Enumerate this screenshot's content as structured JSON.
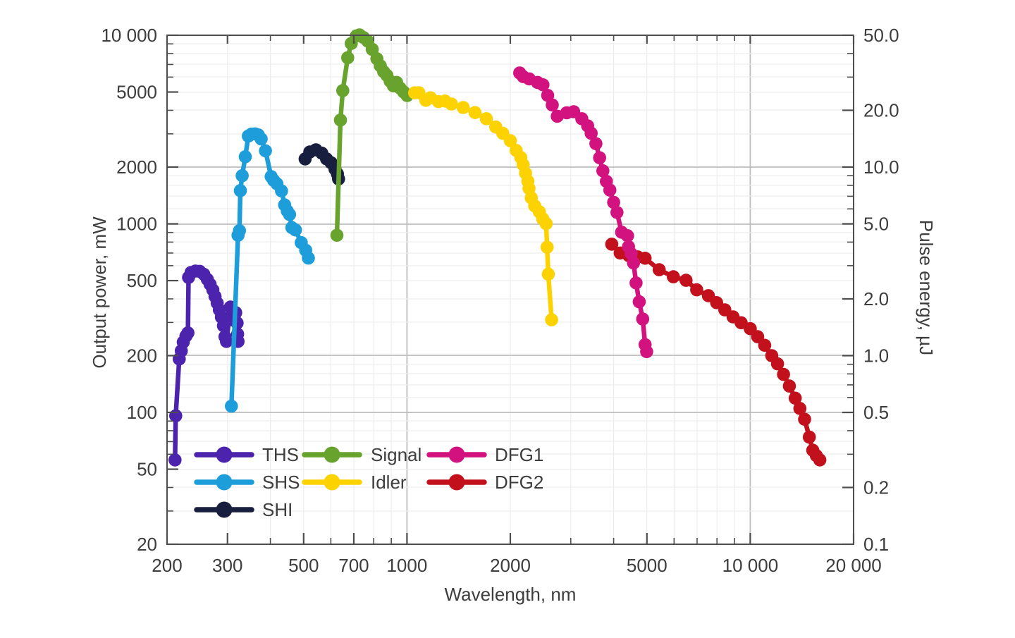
{
  "chart_data": {
    "type": "line",
    "title": "",
    "xlabel": "Wavelength, nm",
    "ylabel_left": "Output power, mW",
    "ylabel_right": "Pulse energy, µJ",
    "x_scale": "log",
    "y_scale": "log",
    "xlim": [
      200,
      20000
    ],
    "ylim_left": [
      20,
      10000
    ],
    "ylim_right": [
      0.1,
      50
    ],
    "grid": true,
    "x_ticks": [
      {
        "v": 200,
        "label": "200"
      },
      {
        "v": 300,
        "label": "300"
      },
      {
        "v": 400
      },
      {
        "v": 500,
        "label": "500"
      },
      {
        "v": 600
      },
      {
        "v": 700,
        "label": "700"
      },
      {
        "v": 800
      },
      {
        "v": 900
      },
      {
        "v": 1000,
        "label": "1000"
      },
      {
        "v": 2000,
        "label": "2000"
      },
      {
        "v": 3000
      },
      {
        "v": 4000
      },
      {
        "v": 5000,
        "label": "5000"
      },
      {
        "v": 6000
      },
      {
        "v": 7000
      },
      {
        "v": 8000
      },
      {
        "v": 9000
      },
      {
        "v": 10000,
        "label": "10 000"
      },
      {
        "v": 20000,
        "label": "20 000"
      }
    ],
    "y_left_ticks": [
      {
        "v": 10000,
        "label": "10 000"
      },
      {
        "v": 9000
      },
      {
        "v": 8000
      },
      {
        "v": 7000
      },
      {
        "v": 6000
      },
      {
        "v": 5000,
        "label": "5000"
      },
      {
        "v": 4000
      },
      {
        "v": 3000
      },
      {
        "v": 2000,
        "label": "2000"
      },
      {
        "v": 1000,
        "label": "1000"
      },
      {
        "v": 900
      },
      {
        "v": 800
      },
      {
        "v": 700
      },
      {
        "v": 600
      },
      {
        "v": 500,
        "label": "500"
      },
      {
        "v": 400
      },
      {
        "v": 300
      },
      {
        "v": 200,
        "label": "200"
      },
      {
        "v": 100,
        "label": "100"
      },
      {
        "v": 90
      },
      {
        "v": 80
      },
      {
        "v": 70
      },
      {
        "v": 60
      },
      {
        "v": 50,
        "label": "50"
      },
      {
        "v": 40
      },
      {
        "v": 30
      },
      {
        "v": 20,
        "label": "20"
      }
    ],
    "y_right_ticks": [
      {
        "v": 50,
        "label": "50.0"
      },
      {
        "v": 40
      },
      {
        "v": 30
      },
      {
        "v": 20,
        "label": "20.0"
      },
      {
        "v": 10,
        "label": "10.0"
      },
      {
        "v": 9
      },
      {
        "v": 8
      },
      {
        "v": 7
      },
      {
        "v": 6
      },
      {
        "v": 5,
        "label": "5.0"
      },
      {
        "v": 4
      },
      {
        "v": 3
      },
      {
        "v": 2,
        "label": "2.0"
      },
      {
        "v": 1,
        "label": "1.0"
      },
      {
        "v": 0.9
      },
      {
        "v": 0.8
      },
      {
        "v": 0.7
      },
      {
        "v": 0.6
      },
      {
        "v": 0.5,
        "label": "0.5"
      },
      {
        "v": 0.4
      },
      {
        "v": 0.3
      },
      {
        "v": 0.2,
        "label": "0.2"
      },
      {
        "v": 0.1,
        "label": "0.1"
      }
    ],
    "grid_emphasis_x": [
      1000,
      10000
    ],
    "grid_emphasis_y": [
      2000,
      1000,
      200,
      100
    ],
    "draw_order": [
      "THS",
      "SHS",
      "SHI",
      "Signal",
      "Idler",
      "DFG2",
      "DFG1"
    ],
    "legend": {
      "columns": [
        [
          "THS",
          "SHS",
          "SHI"
        ],
        [
          "Signal",
          "Idler"
        ],
        [
          "DFG1",
          "DFG2"
        ]
      ]
    },
    "series": [
      {
        "name": "THS",
        "color": "#4c23ad",
        "points": [
          [
            211,
            56
          ],
          [
            212,
            96
          ],
          [
            217,
            192
          ],
          [
            220,
            212
          ],
          [
            223,
            236
          ],
          [
            227,
            254
          ],
          [
            230,
            264
          ],
          [
            231,
            520
          ],
          [
            235,
            552
          ],
          [
            242,
            562
          ],
          [
            249,
            560
          ],
          [
            256,
            540
          ],
          [
            262,
            508
          ],
          [
            267,
            478
          ],
          [
            272,
            446
          ],
          [
            276,
            412
          ],
          [
            280,
            380
          ],
          [
            284,
            350
          ],
          [
            288,
            320
          ],
          [
            292,
            288
          ],
          [
            295,
            252
          ],
          [
            298,
            238
          ],
          [
            303,
            310
          ],
          [
            306,
            362
          ],
          [
            310,
            336
          ],
          [
            314,
            316
          ],
          [
            317,
            338
          ],
          [
            320,
            298
          ],
          [
            321,
            260
          ],
          [
            322,
            238
          ]
        ]
      },
      {
        "name": "SHS",
        "color": "#1d9dd9",
        "points": [
          [
            308,
            108
          ],
          [
            322,
            870
          ],
          [
            325,
            920
          ],
          [
            327,
            1500
          ],
          [
            331,
            1800
          ],
          [
            338,
            2270
          ],
          [
            345,
            2920
          ],
          [
            352,
            2990
          ],
          [
            361,
            3000
          ],
          [
            369,
            2960
          ],
          [
            376,
            2820
          ],
          [
            387,
            2440
          ],
          [
            402,
            1780
          ],
          [
            409,
            1700
          ],
          [
            418,
            1630
          ],
          [
            431,
            1495
          ],
          [
            440,
            1260
          ],
          [
            448,
            1170
          ],
          [
            455,
            1120
          ],
          [
            462,
            955
          ],
          [
            473,
            928
          ],
          [
            492,
            795
          ],
          [
            507,
            724
          ],
          [
            516,
            658
          ]
        ]
      },
      {
        "name": "SHI",
        "color": "#181f3e",
        "points": [
          [
            505,
            2210
          ],
          [
            521,
            2405
          ],
          [
            543,
            2470
          ],
          [
            565,
            2370
          ],
          [
            583,
            2210
          ],
          [
            601,
            2110
          ],
          [
            617,
            1950
          ],
          [
            627,
            1840
          ],
          [
            632,
            1730
          ]
        ]
      },
      {
        "name": "Signal",
        "color": "#68a32d",
        "points": [
          [
            625,
            870
          ],
          [
            640,
            3550
          ],
          [
            650,
            5090
          ],
          [
            672,
            7600
          ],
          [
            688,
            9040
          ],
          [
            712,
            9920
          ],
          [
            727,
            10040
          ],
          [
            747,
            9730
          ],
          [
            769,
            9300
          ],
          [
            792,
            8420
          ],
          [
            817,
            7510
          ],
          [
            836,
            6890
          ],
          [
            855,
            6410
          ],
          [
            874,
            6130
          ],
          [
            893,
            5710
          ],
          [
            913,
            5390
          ],
          [
            933,
            5620
          ],
          [
            955,
            5240
          ],
          [
            978,
            5000
          ],
          [
            1001,
            4790
          ]
        ]
      },
      {
        "name": "Idler",
        "color": "#fdd201",
        "points": [
          [
            1053,
            4950
          ],
          [
            1083,
            4960
          ],
          [
            1135,
            4520
          ],
          [
            1171,
            4660
          ],
          [
            1235,
            4450
          ],
          [
            1290,
            4480
          ],
          [
            1347,
            4320
          ],
          [
            1458,
            4140
          ],
          [
            1578,
            3890
          ],
          [
            1703,
            3610
          ],
          [
            1814,
            3260
          ],
          [
            1901,
            3020
          ],
          [
            2000,
            2760
          ],
          [
            2080,
            2450
          ],
          [
            2146,
            2245
          ],
          [
            2180,
            2057
          ],
          [
            2215,
            1857
          ],
          [
            2250,
            1683
          ],
          [
            2267,
            1542
          ],
          [
            2302,
            1374
          ],
          [
            2356,
            1245
          ],
          [
            2430,
            1158
          ],
          [
            2486,
            1063
          ],
          [
            2543,
            1003
          ],
          [
            2560,
            752
          ],
          [
            2580,
            541
          ],
          [
            2638,
            310
          ]
        ]
      },
      {
        "name": "DFG1",
        "color": "#d2137f",
        "points": [
          [
            2130,
            6310
          ],
          [
            2180,
            6040
          ],
          [
            2270,
            5870
          ],
          [
            2400,
            5620
          ],
          [
            2490,
            5460
          ],
          [
            2570,
            4800
          ],
          [
            2650,
            4270
          ],
          [
            2740,
            3720
          ],
          [
            2920,
            3880
          ],
          [
            3060,
            3930
          ],
          [
            3230,
            3610
          ],
          [
            3360,
            3310
          ],
          [
            3440,
            3020
          ],
          [
            3550,
            2660
          ],
          [
            3640,
            2240
          ],
          [
            3720,
            1910
          ],
          [
            3810,
            1680
          ],
          [
            3900,
            1510
          ],
          [
            4000,
            1300
          ],
          [
            4090,
            1150
          ],
          [
            4220,
            903
          ],
          [
            4390,
            865
          ],
          [
            4420,
            757
          ],
          [
            4500,
            694
          ],
          [
            4570,
            620
          ],
          [
            4650,
            486
          ],
          [
            4750,
            386
          ],
          [
            4860,
            313
          ],
          [
            4940,
            229
          ],
          [
            4990,
            210
          ]
        ]
      },
      {
        "name": "DFG2",
        "color": "#c2101c",
        "points": [
          [
            3950,
            780
          ],
          [
            4180,
            700
          ],
          [
            4430,
            678
          ],
          [
            4700,
            668
          ],
          [
            4940,
            657
          ],
          [
            5430,
            571
          ],
          [
            5970,
            524
          ],
          [
            6500,
            502
          ],
          [
            6980,
            447
          ],
          [
            7550,
            416
          ],
          [
            7980,
            382
          ],
          [
            8430,
            350
          ],
          [
            8910,
            321
          ],
          [
            9410,
            299
          ],
          [
            10000,
            278
          ],
          [
            10510,
            252
          ],
          [
            11020,
            227
          ],
          [
            11550,
            200
          ],
          [
            12010,
            181
          ],
          [
            12500,
            159
          ],
          [
            13000,
            138
          ],
          [
            13520,
            119
          ],
          [
            13950,
            105
          ],
          [
            14400,
            92
          ],
          [
            14860,
            74
          ],
          [
            15210,
            63
          ],
          [
            15580,
            59
          ],
          [
            15950,
            56
          ]
        ]
      }
    ]
  }
}
